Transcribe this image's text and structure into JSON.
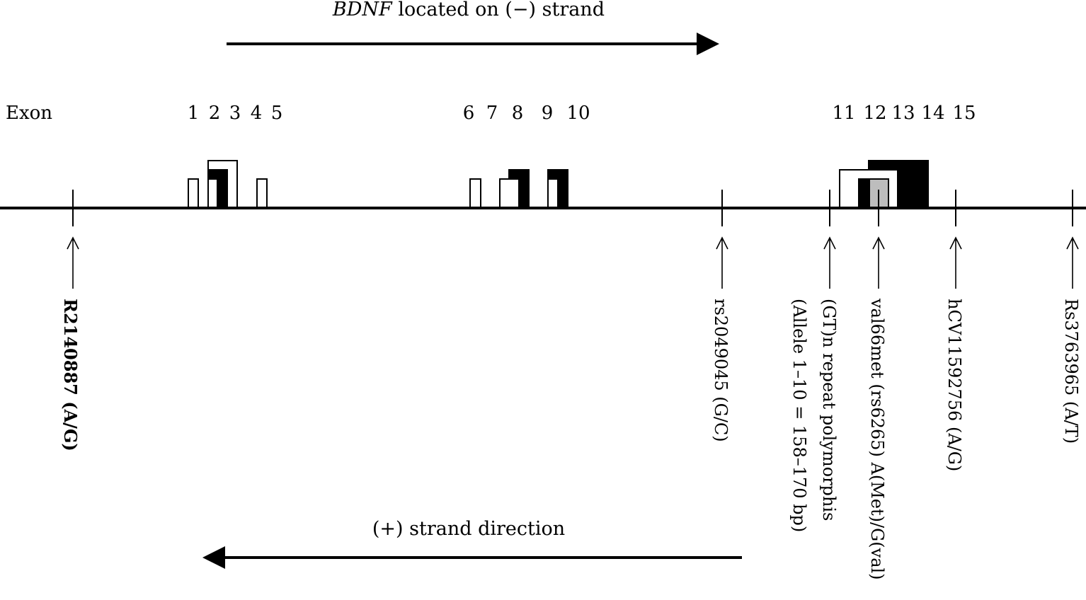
{
  "title": {
    "gene": "BDNF",
    "rest": " located on (−) strand"
  },
  "strand_label": "(+) strand direction",
  "exon_label": "Exon",
  "exon_numbers": [
    "1",
    "2",
    "3",
    "4",
    "5",
    "6",
    "7",
    "8",
    "9",
    "10",
    "11",
    "12",
    "13",
    "14",
    "15"
  ],
  "markers": [
    {
      "id": "r2140887",
      "lines": [
        "R2140887 (A/G)"
      ],
      "bold": true
    },
    {
      "id": "rs2049045",
      "lines": [
        "rs2049045  (G/C)"
      ],
      "bold": false
    },
    {
      "id": "gt-repeat",
      "lines": [
        "(GT)n repeat polymorphis",
        "(Allele 1–10 = 158–170 bp)"
      ],
      "bold": false
    },
    {
      "id": "val66met",
      "lines": [
        "val66met (rs6265) A(Met)/G(val)"
      ],
      "bold": false
    },
    {
      "id": "hcv11592756",
      "lines": [
        "hCV11592756   (A/G)"
      ],
      "bold": false
    },
    {
      "id": "rs3763965",
      "lines": [
        "Rs3763965  (A/T)"
      ],
      "bold": false
    }
  ]
}
